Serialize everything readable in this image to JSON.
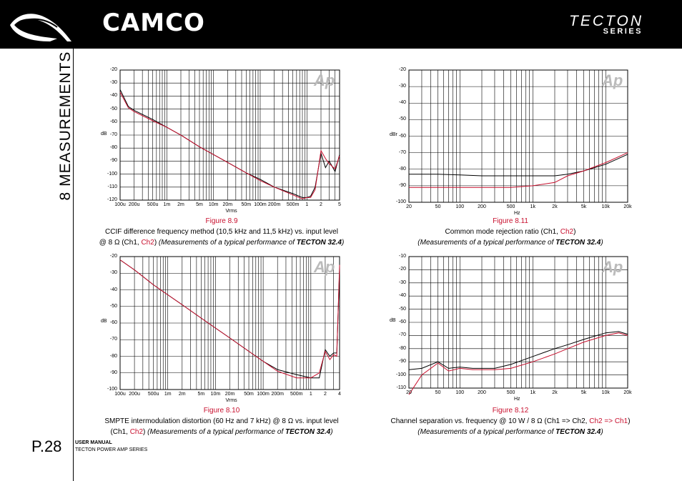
{
  "header": {
    "brand": "CAMCO",
    "series_title": "TECTON",
    "series_sub": "SERIES"
  },
  "sidebar": {
    "section_title": "8 MEASUREMENTS",
    "page_number": "P.28",
    "manual_label": "USER MANUAL",
    "manual_series": "TECTON POWER AMP SERIES"
  },
  "figures": [
    {
      "figure_label": "Figure 8.9",
      "caption_line1": "CCIF difference frequency method (10,5 kHz and 11,5 kHz) vs. input level",
      "caption_l2_a": "@ 8 Ω (Ch1, ",
      "caption_l2_ch2": "Ch2",
      "caption_l2_b": ") ",
      "caption_l2_italic": "(Measurements of a typical performance of ",
      "caption_l2_bold": "TECTON 32.4",
      "caption_l2_end": ")",
      "ylabel": "dB",
      "xlabel": "Vrms",
      "y_ticks": [
        "-20",
        "-30",
        "-40",
        "-50",
        "-60",
        "-70",
        "-80",
        "-90",
        "-100",
        "-110",
        "-120"
      ],
      "x_ticks": [
        "100u",
        "200u",
        "500u",
        "1m",
        "2m",
        "5m",
        "10m",
        "20m",
        "50m",
        "100m",
        "200m",
        "500m",
        "1",
        "2",
        "5"
      ],
      "logo": "Ap"
    },
    {
      "figure_label": "Figure 8.11",
      "caption_line1": "Common mode rejection ratio (Ch1, ",
      "caption_line1_ch2": "Ch2",
      "caption_line1_end": ")",
      "caption_l2_italic": "(Measurements of a typical performance of ",
      "caption_l2_bold": "TECTON 32.4",
      "caption_l2_end": ")",
      "ylabel": "dBr",
      "xlabel": "Hz",
      "y_ticks": [
        "-20",
        "-30",
        "-40",
        "-50",
        "-60",
        "-70",
        "-80",
        "-90",
        "-100"
      ],
      "x_ticks": [
        "20",
        "50",
        "100",
        "200",
        "500",
        "1k",
        "2k",
        "5k",
        "10k",
        "20k"
      ],
      "logo": "Ap"
    },
    {
      "figure_label": "Figure 8.10",
      "caption_line1": "SMPTE intermodulation distortion (60 Hz and 7 kHz) @ 8 Ω vs. input level",
      "caption_l2_a": "(Ch1, ",
      "caption_l2_ch2": "Ch2",
      "caption_l2_b": ") ",
      "caption_l2_italic": "(Measurements of a typical performance of ",
      "caption_l2_bold": "TECTON 32.4",
      "caption_l2_end": ")",
      "ylabel": "dB",
      "xlabel": "Vrms",
      "y_ticks": [
        "-20",
        "-30",
        "-40",
        "-50",
        "-60",
        "-70",
        "-80",
        "-90",
        "-100"
      ],
      "x_ticks": [
        "100u",
        "200u",
        "500u",
        "1m",
        "2m",
        "5m",
        "10m",
        "20m",
        "50m",
        "100m",
        "200m",
        "500m",
        "1",
        "2",
        "4"
      ],
      "logo": "Ap"
    },
    {
      "figure_label": "Figure 8.12",
      "caption_line1": "Channel separation vs. frequency @ 10 W / 8 Ω (Ch1 => Ch2, ",
      "caption_line1_ch2": "Ch2 => Ch1",
      "caption_line1_end": ")",
      "caption_l2_italic": "(Measurements of a typical performance of ",
      "caption_l2_bold": "TECTON 32.4",
      "caption_l2_end": ")",
      "ylabel": "dB",
      "xlabel": "Hz",
      "y_ticks": [
        "-10",
        "-20",
        "-30",
        "-40",
        "-50",
        "-60",
        "-70",
        "-80",
        "-90",
        "-100",
        "-110"
      ],
      "x_ticks": [
        "20",
        "50",
        "100",
        "200",
        "500",
        "1k",
        "2k",
        "5k",
        "10k",
        "20k"
      ],
      "logo": "Ap"
    }
  ],
  "colors": {
    "ch1": "#000000",
    "ch2": "#c8102e"
  },
  "chart_data": [
    {
      "type": "line",
      "x_scale": "log",
      "xlim": [
        0.0001,
        5
      ],
      "ylim": [
        -120,
        -20
      ],
      "x": [
        0.0001,
        0.00015,
        0.0002,
        0.0005,
        0.001,
        0.002,
        0.005,
        0.01,
        0.02,
        0.05,
        0.1,
        0.2,
        0.5,
        0.8,
        1,
        1.2,
        1.5,
        2,
        2.5,
        3,
        4,
        5
      ],
      "series": [
        {
          "values": [
            -35,
            -48,
            -51,
            -58,
            -64,
            -70,
            -79,
            -85,
            -91,
            -99,
            -104,
            -110,
            -115,
            -118,
            -118,
            -117,
            -110,
            -84,
            -95,
            -90,
            -98,
            -85
          ]
        },
        {
          "values": [
            -37,
            -49,
            -52,
            -59,
            -64,
            -70,
            -79,
            -85,
            -91,
            -99,
            -105,
            -110,
            -116,
            -119,
            -118,
            -118,
            -112,
            -82,
            -88,
            -92,
            -96,
            -86
          ]
        }
      ]
    },
    {
      "type": "line",
      "x_scale": "log",
      "xlim": [
        20,
        20000
      ],
      "ylim": [
        -100,
        -20
      ],
      "x": [
        20,
        50,
        100,
        200,
        500,
        1000,
        2000,
        3000,
        5000,
        10000,
        20000
      ],
      "series": [
        {
          "values": [
            -83,
            -83,
            -83.5,
            -84,
            -84,
            -84,
            -84,
            -83,
            -81,
            -77,
            -71
          ]
        },
        {
          "values": [
            -91,
            -91,
            -91,
            -91,
            -91,
            -90,
            -88,
            -84,
            -81,
            -76,
            -70
          ]
        }
      ]
    },
    {
      "type": "line",
      "x_scale": "log",
      "xlim": [
        0.0001,
        4
      ],
      "ylim": [
        -100,
        -20
      ],
      "x": [
        0.0001,
        0.0002,
        0.0005,
        0.001,
        0.002,
        0.005,
        0.01,
        0.02,
        0.05,
        0.1,
        0.2,
        0.5,
        1,
        1.5,
        2,
        2.5,
        3,
        3.5,
        4
      ],
      "series": [
        {
          "values": [
            -22,
            -28,
            -37,
            -43,
            -49,
            -57,
            -63,
            -69,
            -77,
            -83,
            -88,
            -91,
            -93,
            -93,
            -76,
            -80,
            -78,
            -78,
            -28
          ]
        },
        {
          "values": [
            -22,
            -28,
            -37,
            -43,
            -49,
            -57,
            -63,
            -69,
            -77,
            -83,
            -89,
            -93,
            -93,
            -90,
            -77,
            -82,
            -79,
            -80,
            -25
          ]
        }
      ]
    },
    {
      "type": "line",
      "x_scale": "log",
      "xlim": [
        20,
        20000
      ],
      "ylim": [
        -110,
        -10
      ],
      "x": [
        20,
        30,
        50,
        70,
        100,
        150,
        200,
        300,
        500,
        1000,
        2000,
        3000,
        5000,
        10000,
        15000,
        20000
      ],
      "series": [
        {
          "values": [
            -96,
            -95,
            -90,
            -95,
            -94,
            -95,
            -95,
            -95,
            -92,
            -86,
            -80,
            -77,
            -73,
            -68,
            -67,
            -69
          ]
        },
        {
          "values": [
            -115,
            -100,
            -91,
            -97,
            -95,
            -96,
            -96,
            -96,
            -95,
            -90,
            -84,
            -80,
            -75,
            -70,
            -68,
            -70
          ]
        }
      ]
    }
  ]
}
